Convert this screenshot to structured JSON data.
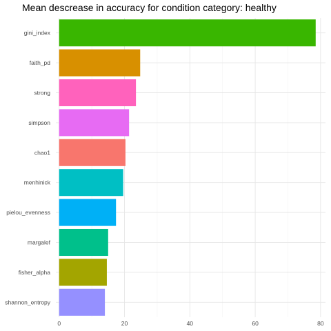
{
  "chart_data": {
    "type": "bar",
    "orientation": "horizontal",
    "title": "Mean descrease in accuracy for condition category: healthy",
    "xlabel": "",
    "ylabel": "",
    "categories": [
      "gini_index",
      "faith_pd",
      "strong",
      "simpson",
      "chao1",
      "menhinick",
      "pielou_evenness",
      "margalef",
      "fisher_alpha",
      "shannon_entropy"
    ],
    "values": [
      78.5,
      24.8,
      23.5,
      21.4,
      20.3,
      19.6,
      17.4,
      15.0,
      14.6,
      14.0
    ],
    "colors": [
      "#39b600",
      "#d89000",
      "#ff62bc",
      "#e76bf3",
      "#f8766d",
      "#00bfc4",
      "#00b0f6",
      "#00c08b",
      "#a3a500",
      "#9590ff"
    ],
    "xlim": [
      -1,
      81.5
    ],
    "xticks": [
      0,
      20,
      40,
      60,
      80
    ],
    "grid": true,
    "legend": "none"
  }
}
